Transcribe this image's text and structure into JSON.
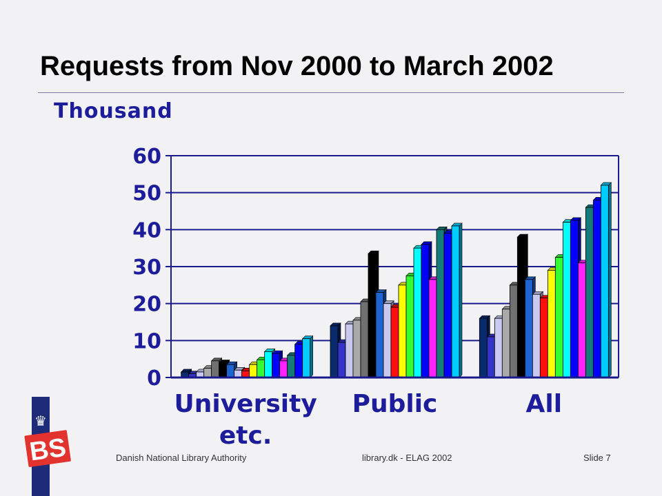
{
  "slide": {
    "title": "Requests from Nov 2000 to March 2002",
    "footer_left": "Danish National Library Authority",
    "footer_center": "library.dk - ELAG 2002",
    "footer_right": "Slide 7",
    "logo_text": "BS"
  },
  "chart_data": {
    "type": "bar",
    "ylabel": "Thousand",
    "ylim": [
      0,
      60
    ],
    "yticks": [
      0,
      10,
      20,
      30,
      40,
      50,
      60
    ],
    "categories": [
      "University etc.",
      "Public",
      "All"
    ],
    "series_colors": [
      "#0a2a6e",
      "#3434c8",
      "#c8c8f0",
      "#aaaaaa",
      "#707070",
      "#000000",
      "#1e64d2",
      "#c8c8f0",
      "#ff1010",
      "#ffff00",
      "#33ff33",
      "#00ffff",
      "#0000ff",
      "#ff22ff",
      "#157a7a",
      "#0000ff",
      "#00ccff"
    ],
    "values": [
      [
        1.5,
        1.0,
        1.5,
        2.5,
        4.5,
        4.0,
        3.5,
        2.0,
        1.8,
        3.5,
        4.8,
        7.0,
        6.5,
        4.5,
        6.0,
        9.0,
        10.5
      ],
      [
        14,
        9.5,
        14.5,
        15.5,
        20.5,
        33.5,
        23,
        20,
        19,
        25,
        27.5,
        35,
        36,
        26.5,
        40,
        39,
        41
      ],
      [
        16,
        11,
        16,
        18.5,
        25,
        38,
        26.5,
        22.5,
        21.5,
        29,
        32.5,
        42,
        42.5,
        31,
        46,
        48,
        52
      ]
    ]
  }
}
